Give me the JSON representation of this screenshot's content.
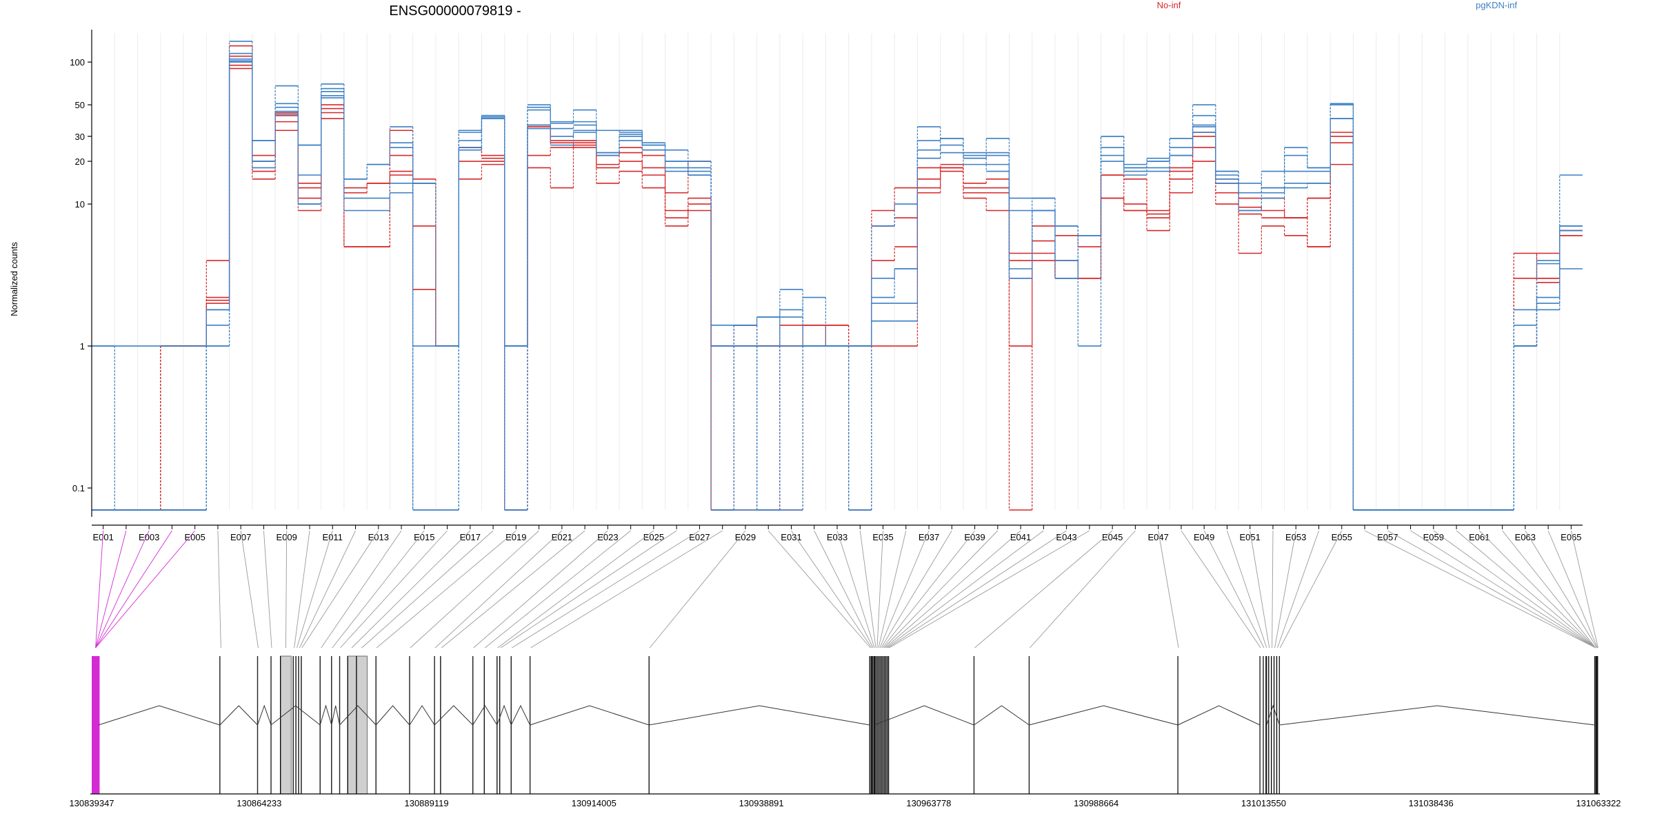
{
  "title": "ENSG00000079819 -",
  "ylabel": "Normalized counts",
  "colors": {
    "No-inf": "#d62728",
    "pgKDN-inf": "#3b7fc4"
  },
  "chart_data": {
    "type": "line",
    "title": "ENSG00000079819 -",
    "ylabel": "Normalized counts",
    "yscale": "log",
    "ylim": [
      0.07,
      160
    ],
    "yticks": [
      0.1,
      1,
      10,
      20,
      30,
      50,
      100
    ],
    "ytick_labels": [
      "0.1",
      "1",
      "10",
      "20",
      "30",
      "50",
      "100"
    ],
    "legend": [
      "No-inf",
      "pgKDN-inf"
    ],
    "legend_position": "top",
    "exon_ids": [
      "E001",
      "E002",
      "E003",
      "E004",
      "E005",
      "E006",
      "E007",
      "E008",
      "E009",
      "E010",
      "E011",
      "E012",
      "E013",
      "E014",
      "E015",
      "E016",
      "E017",
      "E018",
      "E019",
      "E020",
      "E021",
      "E022",
      "E023",
      "E024",
      "E025",
      "E026",
      "E027",
      "E028",
      "E029",
      "E030",
      "E031",
      "E032",
      "E033",
      "E034",
      "E035",
      "E036",
      "E037",
      "E038",
      "E039",
      "E040",
      "E041",
      "E042",
      "E043",
      "E044",
      "E045",
      "E046",
      "E047",
      "E048",
      "E049",
      "E050",
      "E051",
      "E052",
      "E053",
      "E054",
      "E055",
      "E056",
      "E057",
      "E058",
      "E059",
      "E060",
      "E061",
      "E062",
      "E063",
      "E064",
      "E065"
    ],
    "xtick_labels": [
      "E001",
      "E003",
      "E005",
      "E007",
      "E009",
      "E011",
      "E013",
      "E015",
      "E017",
      "E019",
      "E021",
      "E023",
      "E025",
      "E027",
      "E029",
      "E031",
      "E033",
      "E035",
      "E037",
      "E039",
      "E041",
      "E043",
      "E045",
      "E047",
      "E049",
      "E051",
      "E053",
      "E055",
      "E057",
      "E059",
      "E061",
      "E063",
      "E065"
    ],
    "series": [
      {
        "group": "No-inf",
        "values": [
          0.07,
          0.07,
          0.07,
          1,
          1,
          4,
          90,
          15,
          33,
          9,
          40,
          5,
          5,
          16,
          2.5,
          1,
          15,
          19,
          0.07,
          18,
          13,
          25,
          14,
          17,
          13,
          7,
          9,
          0.07,
          0.07,
          0.07,
          1,
          1,
          1.4,
          1,
          1,
          1,
          12,
          17,
          11,
          9,
          1,
          4,
          3,
          3,
          11,
          9,
          6.5,
          12,
          20,
          10,
          4.5,
          7,
          6,
          5,
          19,
          0.07,
          0.07,
          0.07,
          0.07,
          0.07,
          0.07,
          0.07,
          1,
          2.8,
          6
        ]
      },
      {
        "group": "No-inf",
        "values": [
          0.07,
          0.07,
          0.07,
          0.07,
          0.07,
          2,
          95,
          17,
          38,
          11,
          44,
          5,
          5,
          17,
          7,
          1,
          20,
          20,
          0.07,
          22,
          25,
          26,
          18,
          20,
          16,
          8,
          10,
          1,
          1,
          1,
          1.4,
          1.4,
          1.4,
          0.07,
          4,
          5,
          13,
          18,
          12,
          12,
          4.5,
          4.5,
          3,
          3,
          16,
          10,
          8.5,
          15,
          25,
          12,
          11,
          11,
          8,
          5,
          27,
          0.07,
          0.07,
          0.07,
          0.07,
          0.07,
          0.07,
          0.07,
          1,
          4.5,
          6.5
        ]
      },
      {
        "group": "No-inf",
        "values": [
          0.07,
          0.07,
          0.07,
          1,
          1,
          2.2,
          110,
          20,
          42,
          13,
          47,
          12,
          14,
          22,
          15,
          1,
          25,
          21,
          1,
          35,
          27,
          27,
          19,
          23,
          18,
          9,
          11,
          0.07,
          1.4,
          1,
          0.07,
          1.4,
          1,
          1,
          7,
          8,
          15,
          18,
          13,
          13,
          4,
          5.5,
          4,
          3,
          11,
          9,
          8,
          17,
          30,
          14,
          8.5,
          8,
          8,
          11,
          30,
          0.07,
          0.07,
          0.07,
          0.07,
          0.07,
          0.07,
          0.07,
          4.5,
          3,
          6.5
        ]
      },
      {
        "group": "No-inf",
        "values": [
          0.07,
          0.07,
          0.07,
          1,
          1,
          2.1,
          130,
          22,
          44,
          14,
          50,
          13,
          14,
          33,
          14,
          1,
          25,
          22,
          1,
          36,
          28,
          28,
          22,
          25,
          22,
          12,
          20,
          1,
          1,
          1,
          1,
          1,
          1,
          1,
          9,
          13,
          18,
          19,
          14,
          15,
          0.07,
          7,
          6,
          5,
          16,
          15,
          9,
          18,
          32,
          15,
          9.5,
          9,
          8,
          11,
          32,
          0.07,
          0.07,
          0.07,
          0.07,
          0.07,
          0.07,
          0.07,
          3,
          3,
          6
        ]
      },
      {
        "group": "pgKDN-inf",
        "values": [
          1,
          0.07,
          0.07,
          0.07,
          0.07,
          1,
          100,
          20,
          43,
          10,
          56,
          9,
          9,
          12,
          0.07,
          0.07,
          25,
          40,
          0.07,
          34,
          30,
          32,
          23,
          28,
          24,
          17,
          16,
          1,
          1,
          0.07,
          0.07,
          1,
          1,
          0.07,
          2,
          2,
          21,
          23,
          19,
          17,
          3.5,
          9,
          7,
          6,
          22,
          17,
          17,
          22,
          32,
          15,
          9,
          12,
          13,
          14,
          40,
          0.07,
          0.07,
          0.07,
          0.07,
          0.07,
          0.07,
          0.07,
          1,
          2,
          3.5
        ]
      },
      {
        "group": "pgKDN-inf",
        "values": [
          1,
          1,
          1,
          1,
          1,
          1.8,
          102,
          20,
          45,
          10,
          58,
          11,
          11,
          14,
          0.07,
          0.07,
          24,
          41,
          0.07,
          36,
          26,
          33,
          22,
          30,
          24,
          18,
          17,
          1,
          1,
          1,
          1.8,
          1,
          1,
          1,
          1.5,
          1.5,
          21,
          26,
          21,
          19,
          3,
          11,
          7,
          6,
          20,
          16,
          18,
          22,
          36,
          17,
          9,
          11,
          14,
          14,
          40,
          0.07,
          0.07,
          0.07,
          0.07,
          0.07,
          0.07,
          0.07,
          1,
          3.8,
          6.5
        ]
      },
      {
        "group": "pgKDN-inf",
        "values": [
          0.07,
          0.07,
          0.07,
          0.07,
          0.07,
          1.4,
          105,
          18,
          48,
          16,
          62,
          15,
          19,
          25,
          1,
          1,
          28,
          40,
          1,
          46,
          34,
          36,
          23,
          31,
          26,
          20,
          18,
          1.4,
          1.4,
          1.6,
          1,
          2.2,
          1,
          1,
          2.2,
          3.5,
          24,
          29,
          22,
          22,
          3,
          9,
          3,
          6,
          25,
          19,
          20,
          25,
          35,
          14,
          12,
          13,
          17,
          17,
          50,
          0.07,
          0.07,
          0.07,
          0.07,
          0.07,
          0.07,
          0.07,
          1.4,
          1.8,
          7
        ]
      },
      {
        "group": "pgKDN-inf",
        "values": [
          0.07,
          0.07,
          0.07,
          0.07,
          0.07,
          1,
          115,
          28,
          51,
          26,
          65,
          15,
          19,
          27,
          14,
          1,
          32,
          42,
          1,
          48,
          37,
          38,
          33,
          32,
          26,
          20,
          20,
          0.07,
          1.4,
          0.07,
          1.6,
          1,
          1,
          0.07,
          3,
          3.5,
          28,
          29,
          23,
          23,
          9,
          9,
          3,
          6,
          30,
          18,
          20,
          29,
          42,
          17,
          12,
          17,
          22,
          18,
          51,
          0.07,
          0.07,
          0.07,
          0.07,
          0.07,
          0.07,
          0.07,
          1.8,
          2.2,
          7
        ]
      },
      {
        "group": "pgKDN-inf",
        "values": [
          0.07,
          0.07,
          0.07,
          0.07,
          0.07,
          1.8,
          140,
          28,
          68,
          26,
          70,
          15,
          19,
          35,
          14,
          1,
          33,
          42,
          1,
          50,
          38,
          46,
          33,
          33,
          27,
          24,
          16,
          0.07,
          0.07,
          1.6,
          2.5,
          1,
          1,
          1,
          7,
          10,
          35,
          29,
          21,
          29,
          11,
          11,
          4,
          1,
          30,
          18,
          21,
          29,
          50,
          16,
          14,
          13,
          25,
          18,
          51,
          0.07,
          0.07,
          0.07,
          0.07,
          0.07,
          0.07,
          0.07,
          1,
          4,
          16
        ]
      }
    ],
    "gene_model": {
      "coordinate_labels": [
        "130839347",
        "130864233",
        "130889119",
        "130914005",
        "130938891",
        "130963778",
        "130988664",
        "131013550",
        "131038436",
        "131063322"
      ],
      "exon_genomic_bins": [
        {
          "id": "E001",
          "start": 130839347,
          "end": 130840500,
          "highlight": true
        },
        {
          "id": "E002",
          "start": 130839347,
          "end": 130840500,
          "highlight": true
        },
        {
          "id": "E003",
          "start": 130839347,
          "end": 130840500,
          "highlight": true
        },
        {
          "id": "E004",
          "start": 130839347,
          "end": 130840500,
          "highlight": true
        },
        {
          "id": "E005",
          "start": 130839347,
          "end": 130840500,
          "highlight": true
        },
        {
          "id": "E006",
          "start": 130858400,
          "end": 130858700
        },
        {
          "id": "E007",
          "start": 130864000,
          "end": 130864200
        },
        {
          "id": "E008",
          "start": 130866000,
          "end": 130866200
        },
        {
          "id": "E009",
          "start": 130867400,
          "end": 130869000
        },
        {
          "id": "E010",
          "start": 130869300,
          "end": 130869600
        },
        {
          "id": "E011",
          "start": 130869700,
          "end": 130870000
        },
        {
          "id": "E012",
          "start": 130870100,
          "end": 130870400
        },
        {
          "id": "E013",
          "start": 130870500,
          "end": 130870700
        },
        {
          "id": "E014",
          "start": 130873300,
          "end": 130873600
        },
        {
          "id": "E015",
          "start": 130875000,
          "end": 130875200
        },
        {
          "id": "E016",
          "start": 130876200,
          "end": 130876400
        },
        {
          "id": "E017",
          "start": 130877400,
          "end": 130878600
        },
        {
          "id": "E018",
          "start": 130878700,
          "end": 130880300
        },
        {
          "id": "E019",
          "start": 130881600,
          "end": 130881800
        },
        {
          "id": "E020",
          "start": 130886600,
          "end": 130886800
        },
        {
          "id": "E021",
          "start": 130890300,
          "end": 130890500
        },
        {
          "id": "E022",
          "start": 130891200,
          "end": 130891500
        },
        {
          "id": "E023",
          "start": 130896000,
          "end": 130896200
        },
        {
          "id": "E024",
          "start": 130897700,
          "end": 130897900
        },
        {
          "id": "E025",
          "start": 130899600,
          "end": 130899800
        },
        {
          "id": "E026",
          "start": 130900000,
          "end": 130900300
        },
        {
          "id": "E027",
          "start": 130901700,
          "end": 130901900
        },
        {
          "id": "E028",
          "start": 130904500,
          "end": 130904700
        },
        {
          "id": "E029",
          "start": 130922200,
          "end": 130922400
        },
        {
          "id": "E030",
          "start": 130955000,
          "end": 130955200
        },
        {
          "id": "E031",
          "start": 130955200,
          "end": 130955400
        },
        {
          "id": "E032",
          "start": 130955400,
          "end": 130955600
        },
        {
          "id": "E033",
          "start": 130955600,
          "end": 130955800
        },
        {
          "id": "E034",
          "start": 130955800,
          "end": 130956000
        },
        {
          "id": "E035",
          "start": 130956000,
          "end": 130956200
        },
        {
          "id": "E036",
          "start": 130956200,
          "end": 130956400
        },
        {
          "id": "E037",
          "start": 130956400,
          "end": 130956600
        },
        {
          "id": "E038",
          "start": 130956600,
          "end": 130956800
        },
        {
          "id": "E039",
          "start": 130956800,
          "end": 130957000
        },
        {
          "id": "E040",
          "start": 130957000,
          "end": 130957200
        },
        {
          "id": "E041",
          "start": 130957200,
          "end": 130957400
        },
        {
          "id": "E042",
          "start": 130957400,
          "end": 130957600
        },
        {
          "id": "E043",
          "start": 130957600,
          "end": 130957800
        },
        {
          "id": "E044",
          "start": 130957800,
          "end": 130958000
        },
        {
          "id": "E045",
          "start": 130970500,
          "end": 130970700
        },
        {
          "id": "E046",
          "start": 130978700,
          "end": 130978900
        },
        {
          "id": "E047",
          "start": 131000800,
          "end": 131001000
        },
        {
          "id": "E048",
          "start": 131013000,
          "end": 131013200
        },
        {
          "id": "E049",
          "start": 131013500,
          "end": 131013700
        },
        {
          "id": "E050",
          "start": 131013900,
          "end": 131014100
        },
        {
          "id": "E051",
          "start": 131014300,
          "end": 131014500
        },
        {
          "id": "E052",
          "start": 131014700,
          "end": 131014900
        },
        {
          "id": "E053",
          "start": 131015100,
          "end": 131015300
        },
        {
          "id": "E054",
          "start": 131015500,
          "end": 131015700
        },
        {
          "id": "E055",
          "start": 131015900,
          "end": 131016100
        },
        {
          "id": "E056",
          "start": 131062800,
          "end": 131063000
        },
        {
          "id": "E057",
          "start": 131062800,
          "end": 131063000
        },
        {
          "id": "E058",
          "start": 131062800,
          "end": 131063000
        },
        {
          "id": "E059",
          "start": 131062800,
          "end": 131063000
        },
        {
          "id": "E060",
          "start": 131062800,
          "end": 131063000
        },
        {
          "id": "E061",
          "start": 131062800,
          "end": 131063000
        },
        {
          "id": "E062",
          "start": 131062800,
          "end": 131063000
        },
        {
          "id": "E063",
          "start": 131063000,
          "end": 131063200
        },
        {
          "id": "E064",
          "start": 131063100,
          "end": 131063250
        },
        {
          "id": "E065",
          "start": 131063200,
          "end": 131063322
        }
      ],
      "highlight_color": "#d42ad4",
      "shaded_regions": [
        [
          130867400,
          130869000
        ],
        [
          130877400,
          130880300
        ]
      ],
      "extra_tick_coords": [
        130858400,
        130864000,
        130866000,
        130873300,
        130875000,
        130876200,
        130881600,
        130886600,
        130890300,
        130896000,
        130899600,
        130901700,
        130904500,
        130922200,
        130955000,
        130955300,
        130955700,
        130970500,
        130978700,
        131000800,
        131013000,
        131013500,
        131014000,
        131015900,
        131062800,
        131063200
      ]
    }
  }
}
